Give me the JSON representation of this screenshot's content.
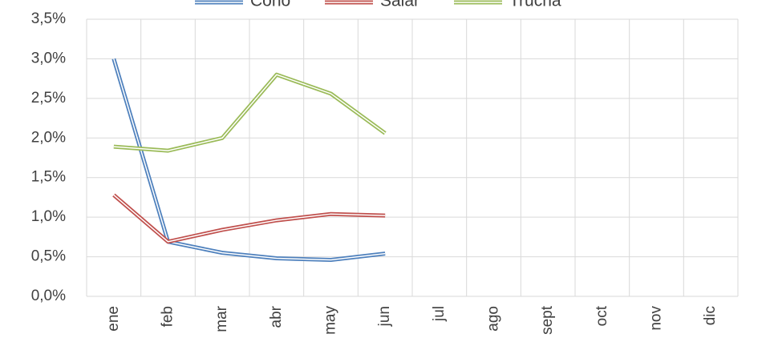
{
  "chart_data": {
    "type": "line",
    "categories": [
      "ene",
      "feb",
      "mar",
      "abr",
      "may",
      "jun",
      "jul",
      "ago",
      "sept",
      "oct",
      "nov",
      "dic"
    ],
    "series": [
      {
        "name": "Cono",
        "color": "#4f81bd",
        "values": [
          3.0,
          0.69,
          0.55,
          0.48,
          0.46,
          0.54,
          null,
          null,
          null,
          null,
          null,
          null
        ]
      },
      {
        "name": "Salar",
        "color": "#c0504d",
        "values": [
          1.28,
          0.69,
          0.84,
          0.96,
          1.04,
          1.02,
          null,
          null,
          null,
          null,
          null,
          null
        ]
      },
      {
        "name": "Trucha",
        "color": "#9bbb59",
        "values": [
          1.89,
          1.84,
          2.0,
          2.8,
          2.56,
          2.06,
          null,
          null,
          null,
          null,
          null,
          null
        ]
      }
    ],
    "ylim": [
      0,
      3.5
    ],
    "yticks": [
      {
        "value": 0,
        "label": "0,0%"
      },
      {
        "value": 0.5,
        "label": "0,5%"
      },
      {
        "value": 1,
        "label": "1,0%"
      },
      {
        "value": 1.5,
        "label": "1,5%"
      },
      {
        "value": 2,
        "label": "2,0%"
      },
      {
        "value": 2.5,
        "label": "2,5%"
      },
      {
        "value": 3,
        "label": "3,0%"
      },
      {
        "value": 3.5,
        "label": "3,5%"
      }
    ],
    "grid": true,
    "legend": "top"
  }
}
